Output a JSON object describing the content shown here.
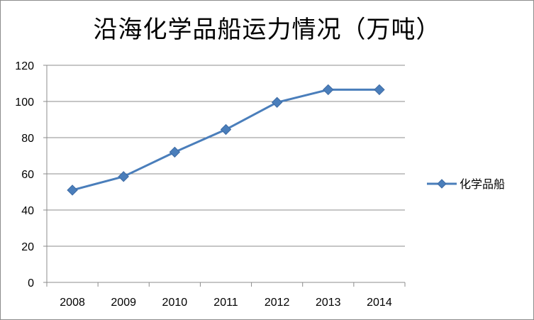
{
  "chart_data": {
    "type": "line",
    "title": "沿海化学品船运力情况（万吨）",
    "xlabel": "",
    "ylabel": "",
    "categories": [
      "2008",
      "2009",
      "2010",
      "2011",
      "2012",
      "2013",
      "2014"
    ],
    "series": [
      {
        "name": "化学品船",
        "values": [
          51,
          58.5,
          72,
          84.5,
          99.5,
          106.5,
          106.5
        ],
        "color": "#4a7ebb",
        "marker": "diamond"
      }
    ],
    "ylim": [
      0,
      120
    ],
    "yticks": [
      0,
      20,
      40,
      60,
      80,
      100,
      120
    ],
    "grid": true,
    "legend": "right"
  }
}
